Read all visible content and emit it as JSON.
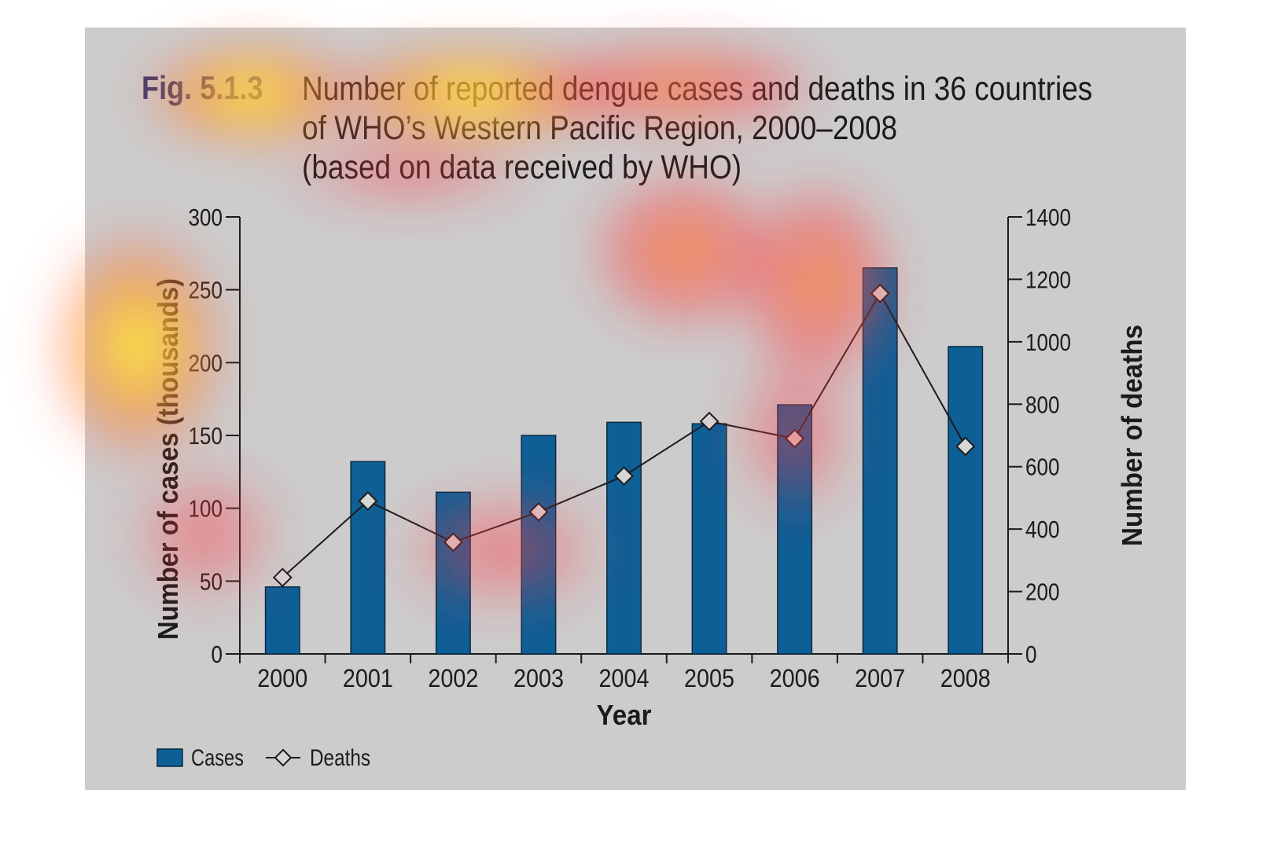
{
  "figure": {
    "label": "Fig. 5.1.3",
    "title_lines": [
      "Number of reported dengue cases and deaths in 36 countries",
      "of WHO’s Western Pacific Region, 2000–2008",
      "(based on data received by WHO)"
    ]
  },
  "colors": {
    "panel": "#cccccc",
    "bar": "#0e5f96",
    "bar_stroke": "#062a44",
    "line": "#1b1b1b",
    "marker_fill": "#d6d6d6",
    "label_color": "#3a3a6e"
  },
  "chart_data": {
    "type": "bar",
    "categories": [
      "2000",
      "2001",
      "2002",
      "2003",
      "2004",
      "2005",
      "2006",
      "2007",
      "2008"
    ],
    "series": [
      {
        "name": "Cases",
        "type": "bar",
        "axis": "left",
        "values": [
          46,
          132,
          111,
          150,
          159,
          158,
          171,
          265,
          211
        ]
      },
      {
        "name": "Deaths",
        "type": "line",
        "axis": "right",
        "marker": "diamond",
        "values": [
          245,
          490,
          358,
          455,
          570,
          745,
          690,
          1155,
          665
        ]
      }
    ],
    "xlabel": "Year",
    "ylabel": "Number of cases (thousands)",
    "ylabel_right": "Number of deaths",
    "ylim": [
      0,
      300
    ],
    "ylim_right": [
      0,
      1400
    ],
    "yticks": [
      "0",
      "50",
      "100",
      "150",
      "200",
      "250",
      "300"
    ],
    "yticks_right": [
      "0",
      "200",
      "400",
      "600",
      "800",
      "1000",
      "1200",
      "1400"
    ],
    "legend": {
      "placement": "bottom-left",
      "entries": [
        "Cases",
        "Deaths"
      ]
    },
    "grid": false,
    "overlay": "attention heatmap"
  }
}
